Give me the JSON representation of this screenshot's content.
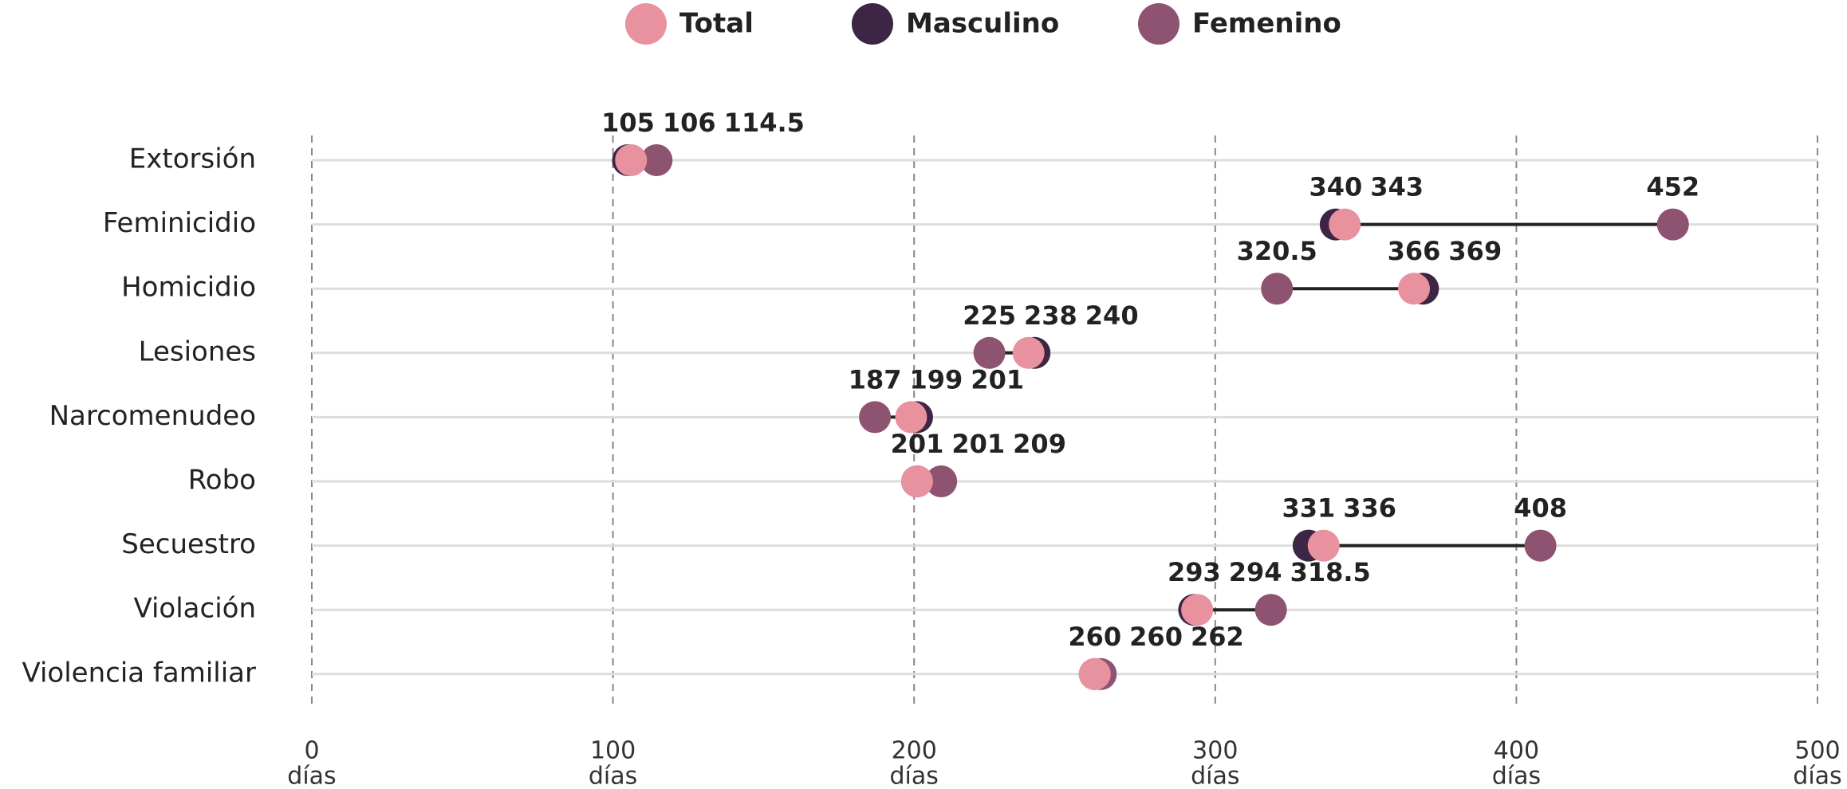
{
  "chart_data": {
    "type": "dumbbell",
    "categories": [
      "Extorsión",
      "Feminicidio",
      "Homicidio",
      "Lesiones",
      "Narcomenudeo",
      "Robo",
      "Secuestro",
      "Violación",
      "Violencia familiar"
    ],
    "series": [
      {
        "name": "Total",
        "color": "#e8919f",
        "values": [
          106,
          343,
          366,
          238,
          199,
          201,
          336,
          294,
          260
        ]
      },
      {
        "name": "Masculino",
        "color": "#3d2645",
        "values": [
          105,
          340,
          369,
          240,
          201,
          201,
          331,
          293,
          260
        ]
      },
      {
        "name": "Femenino",
        "color": "#8e5370",
        "values": [
          114.5,
          452,
          320.5,
          225,
          187,
          209,
          408,
          318.5,
          262
        ]
      }
    ],
    "xlim": [
      0,
      500
    ],
    "xticks": [
      0,
      100,
      200,
      300,
      400,
      500
    ],
    "x_tick_unit": "días",
    "grid": true
  }
}
